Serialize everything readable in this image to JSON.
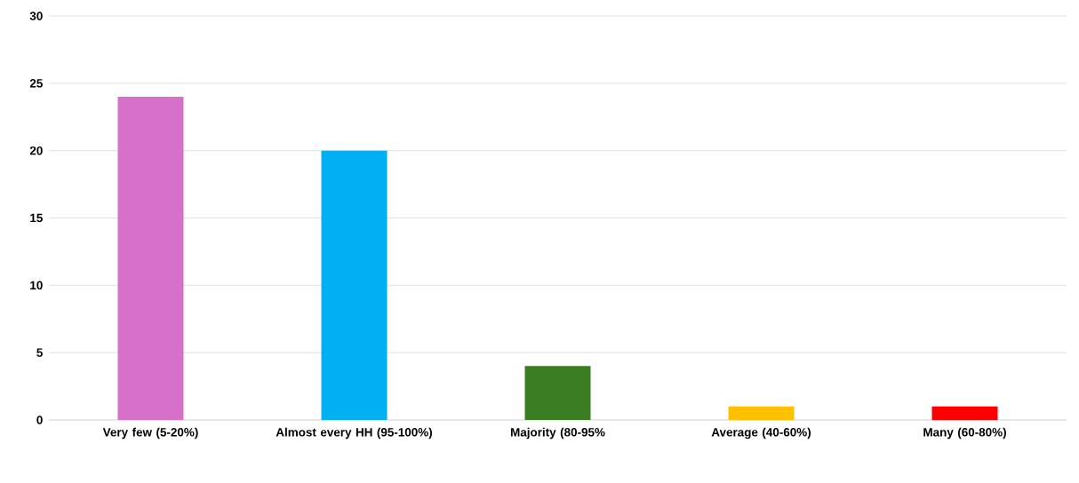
{
  "chart_data": {
    "type": "bar",
    "categories": [
      "Very few (5-20%)",
      "Almost every HH (95-100%)",
      "Majority (80-95%",
      "Average (40-60%)",
      "Many (60-80%)"
    ],
    "values": [
      24,
      20,
      4,
      1,
      1
    ],
    "colors": [
      "#d670c9",
      "#00b0f0",
      "#3a7d22",
      "#ffc000",
      "#ff0000"
    ],
    "ylim": [
      0,
      30
    ],
    "yticks": [
      0,
      5,
      10,
      15,
      20,
      25,
      30
    ],
    "grid": "y"
  }
}
